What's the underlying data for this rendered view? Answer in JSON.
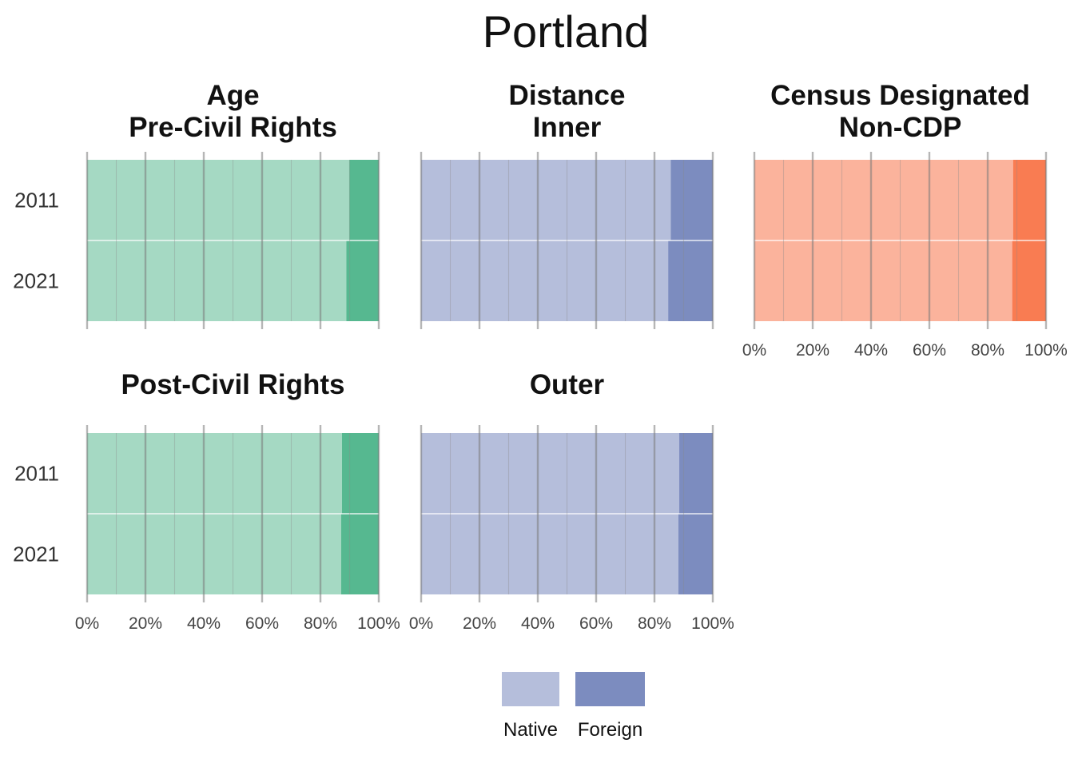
{
  "title": "Portland",
  "chart_data": {
    "type": "bar",
    "orientation": "horizontal",
    "stacked": "percent",
    "title": "Portland",
    "categories": [
      "2011",
      "2021"
    ],
    "x_ticks": [
      "0%",
      "20%",
      "40%",
      "60%",
      "80%",
      "100%"
    ],
    "xlim": [
      0,
      100
    ],
    "grid": true,
    "legend": {
      "position": "bottom",
      "entries": [
        "Native",
        "Foreign"
      ],
      "colors": [
        "#b5bedb",
        "#7c8cbf"
      ]
    },
    "facets": [
      {
        "group": "Age",
        "subgroup": "Pre-Civil Rights",
        "colors": {
          "Native": "#a5d9c3",
          "Foreign": "#56b890"
        },
        "series": [
          {
            "name": "Native",
            "values": [
              89.9,
              88.9
            ]
          },
          {
            "name": "Foreign",
            "values": [
              10.1,
              11.1
            ]
          }
        ]
      },
      {
        "group": "Distance",
        "subgroup": "Inner",
        "colors": {
          "Native": "#b5bedb",
          "Foreign": "#7c8cbf"
        },
        "series": [
          {
            "name": "Native",
            "values": [
              85.6,
              84.7
            ]
          },
          {
            "name": "Foreign",
            "values": [
              14.4,
              15.3
            ]
          }
        ]
      },
      {
        "group": "Census Designated",
        "subgroup": "Non-CDP",
        "colors": {
          "Native": "#fbb39c",
          "Foreign": "#f97c52"
        },
        "series": [
          {
            "name": "Native",
            "values": [
              88.7,
              88.4
            ]
          },
          {
            "name": "Foreign",
            "values": [
              11.3,
              11.6
            ]
          }
        ]
      },
      {
        "group": "",
        "subgroup": "Post-Civil Rights",
        "colors": {
          "Native": "#a5d9c3",
          "Foreign": "#56b890"
        },
        "series": [
          {
            "name": "Native",
            "values": [
              87.4,
              87.1
            ]
          },
          {
            "name": "Foreign",
            "values": [
              12.6,
              12.9
            ]
          }
        ]
      },
      {
        "group": "",
        "subgroup": "Outer",
        "colors": {
          "Native": "#b5bedb",
          "Foreign": "#7c8cbf"
        },
        "series": [
          {
            "name": "Native",
            "values": [
              88.5,
              88.2
            ]
          },
          {
            "name": "Foreign",
            "values": [
              11.5,
              11.8
            ]
          }
        ]
      }
    ]
  }
}
